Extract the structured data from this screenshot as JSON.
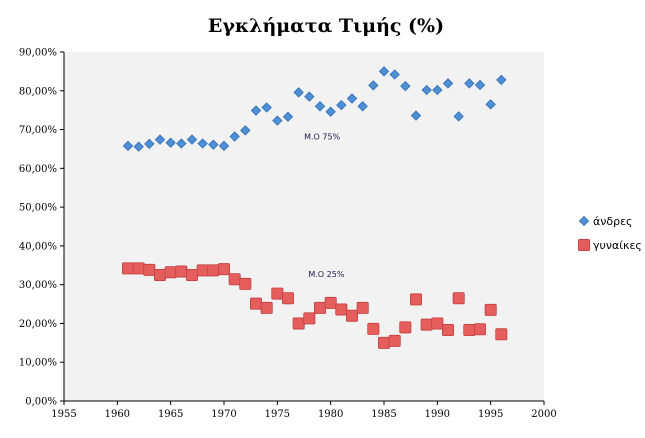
{
  "chart_data": {
    "type": "scatter",
    "title": "Εγκλήματα Τιμής (%)",
    "xlabel": "",
    "ylabel": "",
    "xlim": [
      1955,
      2000
    ],
    "ylim": [
      0,
      0.9
    ],
    "xticks": [
      "1955",
      "1960",
      "1965",
      "1970",
      "1975",
      "1980",
      "1985",
      "1990",
      "1995",
      "2000"
    ],
    "yticks": [
      "0,00%",
      "10,00%",
      "20,00%",
      "30,00%",
      "40,00%",
      "50,00%",
      "60,00%",
      "70,00%",
      "80,00%",
      "90,00%"
    ],
    "grid": false,
    "legend_position": "right",
    "plot_background": "#f2f2f2",
    "series": [
      {
        "name": "άνδρες",
        "marker": "diamond",
        "color": "#4f8fd6",
        "points": [
          [
            1961,
            0.658
          ],
          [
            1962,
            0.656
          ],
          [
            1963,
            0.663
          ],
          [
            1964,
            0.674
          ],
          [
            1965,
            0.666
          ],
          [
            1966,
            0.664
          ],
          [
            1967,
            0.674
          ],
          [
            1968,
            0.664
          ],
          [
            1969,
            0.661
          ],
          [
            1970,
            0.658
          ],
          [
            1971,
            0.682
          ],
          [
            1972,
            0.698
          ],
          [
            1973,
            0.749
          ],
          [
            1974,
            0.757
          ],
          [
            1975,
            0.723
          ],
          [
            1976,
            0.733
          ],
          [
            1977,
            0.796
          ],
          [
            1978,
            0.785
          ],
          [
            1979,
            0.76
          ],
          [
            1980,
            0.746
          ],
          [
            1981,
            0.763
          ],
          [
            1982,
            0.78
          ],
          [
            1983,
            0.76
          ],
          [
            1984,
            0.814
          ],
          [
            1985,
            0.85
          ],
          [
            1986,
            0.842
          ],
          [
            1987,
            0.812
          ],
          [
            1988,
            0.736
          ],
          [
            1989,
            0.802
          ],
          [
            1990,
            0.802
          ],
          [
            1991,
            0.819
          ],
          [
            1992,
            0.734
          ],
          [
            1993,
            0.819
          ],
          [
            1994,
            0.815
          ],
          [
            1995,
            0.765
          ],
          [
            1996,
            0.828
          ]
        ]
      },
      {
        "name": "γυναίκες",
        "marker": "square",
        "color": "#e45e5e",
        "points": [
          [
            1961,
            0.342
          ],
          [
            1962,
            0.342
          ],
          [
            1963,
            0.338
          ],
          [
            1964,
            0.325
          ],
          [
            1965,
            0.332
          ],
          [
            1966,
            0.334
          ],
          [
            1967,
            0.325
          ],
          [
            1968,
            0.337
          ],
          [
            1969,
            0.337
          ],
          [
            1970,
            0.34
          ],
          [
            1971,
            0.314
          ],
          [
            1972,
            0.302
          ],
          [
            1973,
            0.251
          ],
          [
            1974,
            0.24
          ],
          [
            1975,
            0.277
          ],
          [
            1976,
            0.265
          ],
          [
            1977,
            0.2
          ],
          [
            1978,
            0.213
          ],
          [
            1979,
            0.24
          ],
          [
            1980,
            0.253
          ],
          [
            1981,
            0.236
          ],
          [
            1982,
            0.22
          ],
          [
            1983,
            0.24
          ],
          [
            1984,
            0.186
          ],
          [
            1985,
            0.15
          ],
          [
            1986,
            0.155
          ],
          [
            1987,
            0.19
          ],
          [
            1988,
            0.262
          ],
          [
            1989,
            0.197
          ],
          [
            1990,
            0.2
          ],
          [
            1991,
            0.183
          ],
          [
            1992,
            0.265
          ],
          [
            1993,
            0.183
          ],
          [
            1994,
            0.185
          ],
          [
            1995,
            0.235
          ],
          [
            1996,
            0.172
          ]
        ]
      }
    ],
    "annotations": [
      {
        "text": "Μ.Ο 75%",
        "x": 1979.2,
        "y": 0.675
      },
      {
        "text": "Μ.Ο 25%",
        "x": 1979.6,
        "y": 0.32
      }
    ]
  }
}
